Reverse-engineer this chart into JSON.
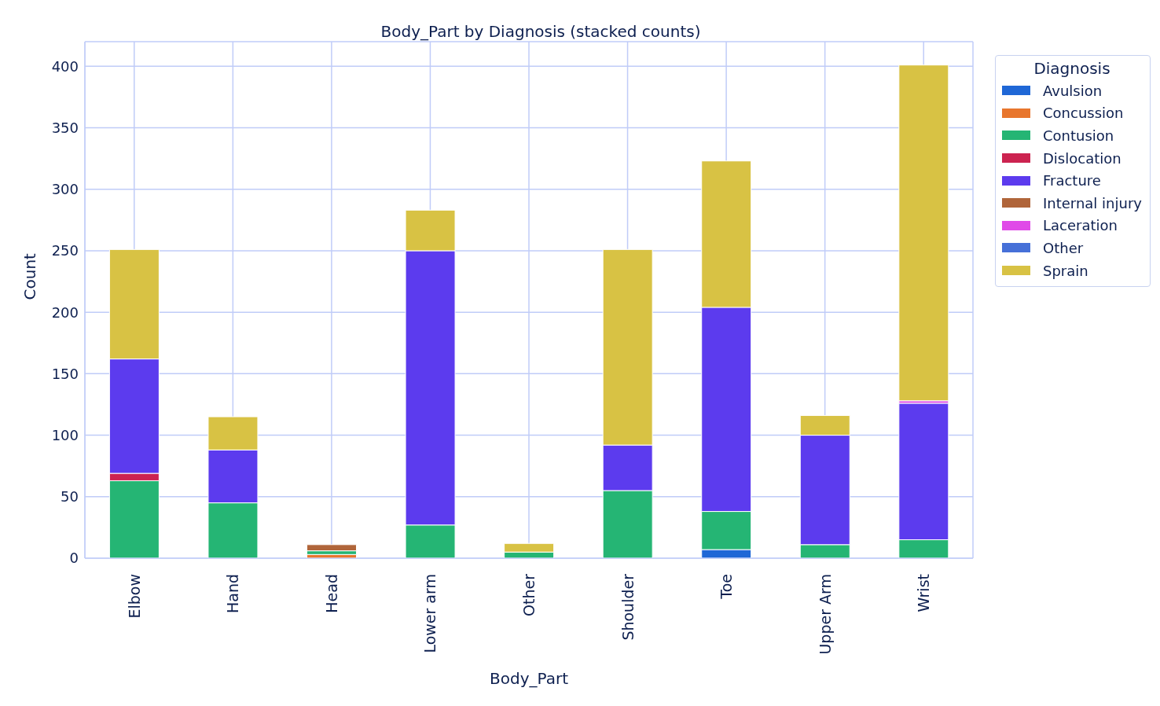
{
  "chart_data": {
    "type": "bar",
    "title": "Body_Part by Diagnosis (stacked counts)",
    "xlabel": "Body_Part",
    "ylabel": "Count",
    "legend_title": "Diagnosis",
    "categories": [
      "Elbow",
      "Hand",
      "Head",
      "Lower arm",
      "Other",
      "Shoulder",
      "Toe",
      "Upper Arm",
      "Wrist"
    ],
    "series": [
      {
        "name": "Avulsion",
        "color": "#1f67d6",
        "values": [
          0,
          0,
          0,
          0,
          0,
          0,
          7,
          0,
          0
        ]
      },
      {
        "name": "Concussion",
        "color": "#e8762d",
        "values": [
          0,
          0,
          3,
          0,
          0,
          0,
          0,
          0,
          0
        ]
      },
      {
        "name": "Contusion",
        "color": "#25b574",
        "values": [
          63,
          45,
          3,
          27,
          5,
          55,
          31,
          11,
          15
        ]
      },
      {
        "name": "Dislocation",
        "color": "#cc2350",
        "values": [
          6,
          0,
          0,
          0,
          0,
          0,
          0,
          0,
          0
        ]
      },
      {
        "name": "Fracture",
        "color": "#5c3bee",
        "values": [
          93,
          43,
          0,
          223,
          0,
          37,
          166,
          89,
          111
        ]
      },
      {
        "name": "Internal injury",
        "color": "#b0653a",
        "values": [
          0,
          0,
          5,
          0,
          0,
          0,
          0,
          0,
          0
        ]
      },
      {
        "name": "Laceration",
        "color": "#e04ae8",
        "values": [
          0,
          0,
          0,
          0,
          0,
          0,
          0,
          0,
          2
        ]
      },
      {
        "name": "Other",
        "color": "#4670d8",
        "values": [
          0,
          0,
          0,
          0,
          0,
          0,
          0,
          0,
          0
        ]
      },
      {
        "name": "Sprain",
        "color": "#d8c244",
        "values": [
          89,
          27,
          0,
          33,
          7,
          159,
          119,
          16,
          273
        ]
      }
    ],
    "stacked": true,
    "ylim": [
      0,
      420
    ],
    "yticks": [
      0,
      50,
      100,
      150,
      200,
      250,
      300,
      350,
      400
    ],
    "grid": true,
    "legend": "top right"
  }
}
